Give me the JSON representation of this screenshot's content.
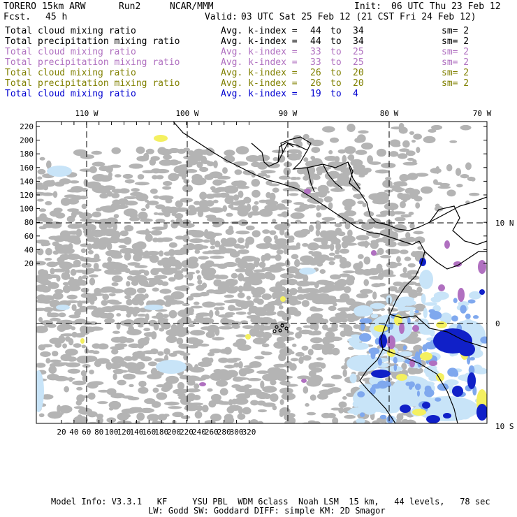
{
  "header": {
    "model": "TORERO",
    "resolution": "15km ARW",
    "run": "Run2",
    "org": "NCAR/MMM",
    "init_label": "Init:",
    "init_value": "06 UTC Thu 23 Feb 12",
    "fcst_label": "Fcst.",
    "fcst_value": "45 h",
    "valid_label": "Valid:",
    "valid_value": "03 UTC Sat 25 Feb 12 (21 CST Fri 24 Feb 12)"
  },
  "legend": [
    {
      "field": "Total cloud mixing ratio",
      "kindex": "Avg. k-index =",
      "k_hi": "44",
      "to": "to",
      "k_lo": "34",
      "sm": "sm= 2",
      "color": "#000000"
    },
    {
      "field": "Total precipitation mixing ratio",
      "kindex": "Avg. k-index =",
      "k_hi": "44",
      "to": "to",
      "k_lo": "34",
      "sm": "sm= 2",
      "color": "#000000"
    },
    {
      "field": "Total cloud mixing ratio",
      "kindex": "Avg. k-index =",
      "k_hi": "33",
      "to": "to",
      "k_lo": "25",
      "sm": "sm= 2",
      "color": "#b070c0"
    },
    {
      "field": "Total precipitation mixing ratio",
      "kindex": "Avg. k-index =",
      "k_hi": "33",
      "to": "to",
      "k_lo": "25",
      "sm": "sm= 2",
      "color": "#b070c0"
    },
    {
      "field": "Total cloud mixing ratio",
      "kindex": "Avg. k-index =",
      "k_hi": "26",
      "to": "to",
      "k_lo": "20",
      "sm": "sm= 2",
      "color": "#808000"
    },
    {
      "field": "Total precipitation mixing ratio",
      "kindex": "Avg. k-index =",
      "k_hi": "26",
      "to": "to",
      "k_lo": "20",
      "sm": "sm= 2",
      "color": "#808000"
    },
    {
      "field": "Total cloud mixing ratio",
      "kindex": "Avg. k-index =",
      "k_hi": "19",
      "to": "to",
      "k_lo": "4",
      "sm": "",
      "color": "#0000d0"
    }
  ],
  "map": {
    "top_lon_labels": [
      "110 W",
      "100 W",
      "90 W",
      "80 W",
      "70 W"
    ],
    "right_lat_labels": [
      "10 N",
      "0",
      "10 S"
    ],
    "left_ticks": [
      "220",
      "200",
      "180",
      "160",
      "140",
      "120",
      "100",
      "80",
      "60",
      "40",
      "20"
    ],
    "bottom_ticks": [
      "20",
      "40",
      "60",
      "80",
      "100",
      "120",
      "140",
      "160",
      "180",
      "200",
      "220",
      "240",
      "260",
      "280",
      "300",
      "320"
    ],
    "colors": {
      "cloud_gray": "#b4b4b4",
      "light_blue": "#c8e4f8",
      "mid_blue": "#7fa8ee",
      "deep_blue": "#1020c8",
      "yellow": "#f4f060",
      "purple": "#b070c0"
    }
  },
  "footer": {
    "line1": "Model Info: V3.3.1   KF     YSU PBL  WDM 6class  Noah LSM  15 km,   44 levels,   78 sec",
    "line2": "LW: Godd SW: Goddard DIFF: simple KM: 2D Smagor"
  }
}
